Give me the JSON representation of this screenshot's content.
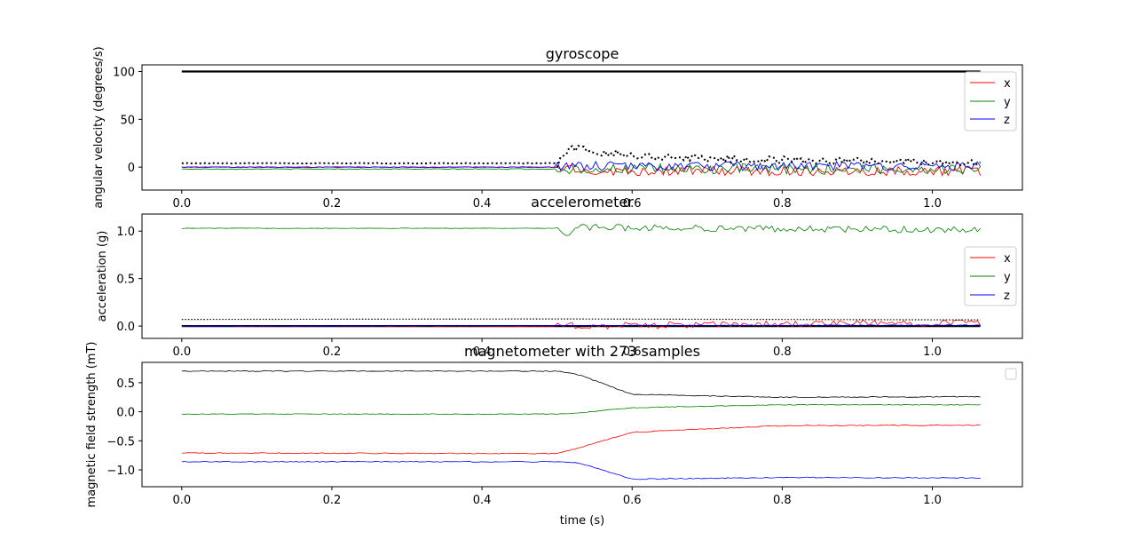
{
  "figure": {
    "xlabel": "time (s)"
  },
  "chart_data": [
    {
      "type": "line",
      "title": "gyroscope",
      "xlabel": "",
      "ylabel": "angular velocity (degrees/s)",
      "xlim": [
        -0.053,
        1.12
      ],
      "ylim": [
        -24,
        107
      ],
      "xticks": [
        0.0,
        0.2,
        0.4,
        0.6,
        0.8,
        1.0
      ],
      "yticks": [
        0,
        50,
        100
      ],
      "xtick_labels": [
        "0.0",
        "0.2",
        "0.4",
        "0.6",
        "0.8",
        "1.0"
      ],
      "ytick_labels": [
        "0",
        "50",
        "100"
      ],
      "legend": {
        "position": "upper-right",
        "entries": [
          "x",
          "y",
          "z"
        ]
      },
      "threshold": {
        "value": 100,
        "style": "solid-black"
      },
      "series": [
        {
          "name": "x",
          "color": "#ff0000",
          "breakpoints": [
            [
              0.0,
              0.0
            ],
            [
              0.5,
              0.0
            ],
            [
              0.53,
              -4.0
            ],
            [
              1.06,
              -4.0
            ]
          ],
          "noise_after": 0.5,
          "noise": 5.0
        },
        {
          "name": "y",
          "color": "#008000",
          "breakpoints": [
            [
              0.0,
              -2.0
            ],
            [
              0.5,
              -2.0
            ],
            [
              0.53,
              -2.0
            ],
            [
              1.06,
              -2.0
            ]
          ],
          "noise_after": 0.5,
          "noise": 5.5
        },
        {
          "name": "z",
          "color": "#0000ff",
          "breakpoints": [
            [
              0.0,
              0.0
            ],
            [
              0.5,
              0.0
            ],
            [
              0.53,
              1.0
            ],
            [
              1.06,
              1.0
            ]
          ],
          "noise_after": 0.5,
          "noise": 5.0
        }
      ],
      "magnitude": {
        "color": "#000000",
        "style": "dotted",
        "breakpoints": [
          [
            0.0,
            4.0
          ],
          [
            0.5,
            4.0
          ],
          [
            0.52,
            20.0
          ],
          [
            0.6,
            12.0
          ],
          [
            0.75,
            8.0
          ],
          [
            1.06,
            5.0
          ]
        ],
        "noise_after": 0.5,
        "noise": 4.0
      }
    },
    {
      "type": "line",
      "title": "accelerometer",
      "xlabel": "",
      "ylabel": "acceleration (g)",
      "xlim": [
        -0.053,
        1.12
      ],
      "ylim": [
        -0.13,
        1.18
      ],
      "xticks": [
        0.0,
        0.2,
        0.4,
        0.6,
        0.8,
        1.0
      ],
      "yticks": [
        0.0,
        0.5,
        1.0
      ],
      "xtick_labels": [
        "0.0",
        "0.2",
        "0.4",
        "0.6",
        "0.8",
        "1.0"
      ],
      "ytick_labels": [
        "0.0",
        "0.5",
        "1.0"
      ],
      "legend": {
        "position": "center-right",
        "entries": [
          "x",
          "y",
          "z"
        ]
      },
      "threshold": {
        "value": 0.0,
        "style": "solid-black"
      },
      "series": [
        {
          "name": "x",
          "color": "#ff0000",
          "breakpoints": [
            [
              0.0,
              0.0
            ],
            [
              0.5,
              0.0
            ],
            [
              0.52,
              0.0
            ],
            [
              1.06,
              0.04
            ]
          ],
          "noise_after": 0.5,
          "noise": 0.035
        },
        {
          "name": "y",
          "color": "#008000",
          "breakpoints": [
            [
              0.0,
              1.03
            ],
            [
              0.5,
              1.03
            ],
            [
              0.51,
              0.96
            ],
            [
              0.53,
              1.04
            ],
            [
              1.06,
              1.01
            ]
          ],
          "noise_after": 0.5,
          "noise": 0.035
        },
        {
          "name": "z",
          "color": "#0000ff",
          "breakpoints": [
            [
              0.0,
              0.0
            ],
            [
              1.06,
              0.01
            ]
          ],
          "noise_after": 0.5,
          "noise": 0.004
        }
      ],
      "magnitude": {
        "color": "#000000",
        "style": "dotted",
        "breakpoints": [
          [
            0.0,
            0.07
          ],
          [
            0.5,
            0.075
          ],
          [
            1.06,
            0.065
          ]
        ],
        "noise_after": 2.0,
        "noise": 0.0
      }
    },
    {
      "type": "line",
      "title": "magnetometer with 273 samples",
      "xlabel": "time (s)",
      "ylabel": "magnetic field strength (mT)",
      "xlim": [
        -0.053,
        1.12
      ],
      "ylim": [
        -1.29,
        0.85
      ],
      "xticks": [
        0.0,
        0.2,
        0.4,
        0.6,
        0.8,
        1.0
      ],
      "yticks": [
        -1.0,
        -0.5,
        0.0,
        0.5
      ],
      "xtick_labels": [
        "0.0",
        "0.2",
        "0.4",
        "0.6",
        "0.8",
        "1.0"
      ],
      "ytick_labels": [
        "−1.0",
        "−0.5",
        "0.0",
        "0.5"
      ],
      "legend": {
        "position": "upper-right",
        "entries": []
      },
      "series": [
        {
          "color": "#000000",
          "breakpoints": [
            [
              0.0,
              0.7
            ],
            [
              0.5,
              0.7
            ],
            [
              0.53,
              0.63
            ],
            [
              0.6,
              0.3
            ],
            [
              0.8,
              0.25
            ],
            [
              1.06,
              0.26
            ]
          ],
          "noise_after": -1.0,
          "noise": 0.008
        },
        {
          "color": "#008000",
          "breakpoints": [
            [
              0.0,
              -0.04
            ],
            [
              0.5,
              -0.04
            ],
            [
              0.53,
              -0.02
            ],
            [
              0.6,
              0.07
            ],
            [
              0.8,
              0.12
            ],
            [
              1.06,
              0.12
            ]
          ],
          "noise_after": -1.0,
          "noise": 0.006
        },
        {
          "color": "#ff0000",
          "breakpoints": [
            [
              0.0,
              -0.71
            ],
            [
              0.5,
              -0.72
            ],
            [
              0.53,
              -0.62
            ],
            [
              0.6,
              -0.35
            ],
            [
              0.8,
              -0.24
            ],
            [
              1.06,
              -0.23
            ]
          ],
          "noise_after": -1.0,
          "noise": 0.008
        },
        {
          "color": "#0000ff",
          "breakpoints": [
            [
              0.0,
              -0.86
            ],
            [
              0.5,
              -0.86
            ],
            [
              0.53,
              -0.88
            ],
            [
              0.6,
              -1.16
            ],
            [
              0.8,
              -1.13
            ],
            [
              1.06,
              -1.14
            ]
          ],
          "noise_after": -1.0,
          "noise": 0.008
        }
      ]
    }
  ]
}
